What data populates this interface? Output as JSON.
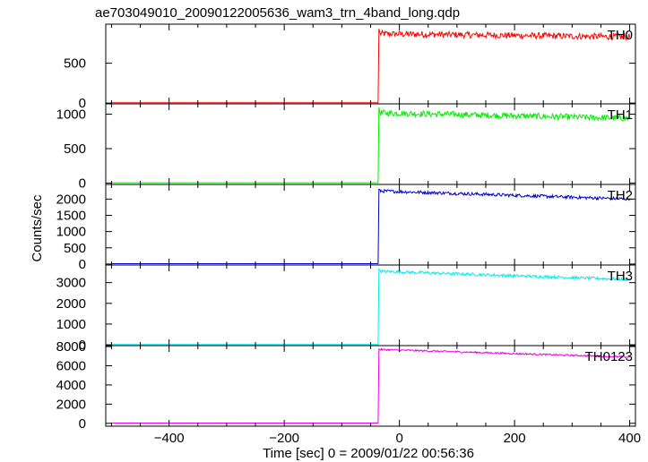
{
  "chart_data": {
    "type": "line",
    "title": "ae703049010_20090122005636_wam3_trn_4band_long.qdp",
    "xlabel": "Time [sec] 0 = 2009/01/22 00:56:36",
    "ylabel": "Counts/sec",
    "xlim": [
      -510,
      410
    ],
    "x_ticks": [
      -400,
      -200,
      0,
      200,
      400
    ],
    "onset_time": -37,
    "panels": [
      {
        "name": "TH0",
        "color": "#ff0000",
        "ylim": [
          -10,
          990
        ],
        "y_ticks": [
          0,
          500
        ],
        "pre_level": 5,
        "peak": 930,
        "post_start": 870,
        "post_end": 830,
        "noise": 40
      },
      {
        "name": "TH1",
        "color": "#00ee00",
        "ylim": [
          -20,
          1150
        ],
        "y_ticks": [
          0,
          500,
          1000
        ],
        "pre_level": 5,
        "peak": 1100,
        "post_start": 1020,
        "post_end": 940,
        "noise": 45
      },
      {
        "name": "TH2",
        "color": "#0000cc",
        "ylim": [
          -30,
          2450
        ],
        "y_ticks": [
          0,
          500,
          1000,
          1500,
          2000
        ],
        "pre_level": 10,
        "peak": 2300,
        "post_start": 2250,
        "post_end": 2000,
        "noise": 50
      },
      {
        "name": "TH3",
        "color": "#00eeee",
        "ylim": [
          -40,
          3850
        ],
        "y_ticks": [
          0,
          1000,
          2000,
          3000
        ],
        "pre_level": 10,
        "peak": 3650,
        "post_start": 3550,
        "post_end": 3150,
        "noise": 70
      },
      {
        "name": "TH0123",
        "color": "#ee00ee",
        "ylim": [
          -300,
          8100
        ],
        "y_ticks": [
          0,
          2000,
          4000,
          6000,
          8000
        ],
        "pre_level": 30,
        "peak": 7750,
        "post_start": 7700,
        "post_end": 6900,
        "noise": 90
      }
    ]
  }
}
